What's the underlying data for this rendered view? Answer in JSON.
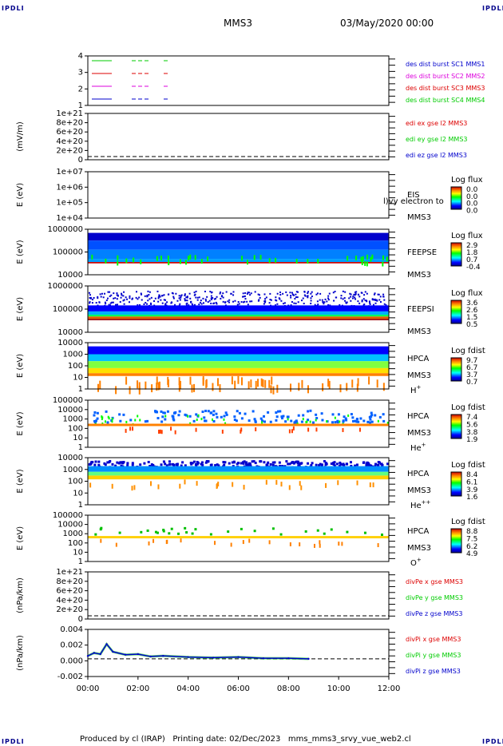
{
  "corner_label": "IPDLI",
  "header": {
    "spacecraft": "MMS3",
    "datetime": "03/May/2020 00:00"
  },
  "footer": {
    "produced_by": "Produced by cl (IRAP)",
    "printing_date": "Printing date: 02/Dec/2023",
    "script": "mms_mms3_srvy_vue_web2.cl"
  },
  "colors": {
    "mms1": "#0000cc",
    "mms2": "#dd00dd",
    "mms3": "#dd0000",
    "mms4": "#00cc00"
  },
  "chart_data": [
    {
      "id": "des-dist-burst",
      "type": "line",
      "yticks": [
        "1",
        "2",
        "3",
        "4"
      ],
      "legend": [
        {
          "label": "des dist burst SC1 MMS1",
          "color": "#0000cc"
        },
        {
          "label": "des dist burst SC2 MMS2",
          "color": "#dd00dd"
        },
        {
          "label": "des dist burst SC3 MMS3",
          "color": "#dd0000"
        },
        {
          "label": "des dist burst SC4 MMS4",
          "color": "#00cc00"
        }
      ]
    },
    {
      "id": "edi-e",
      "type": "line",
      "ylabel": "(mV/m)",
      "yticks": [
        "0",
        "2e+20",
        "4e+20",
        "6e+20",
        "8e+20",
        "1e+21"
      ],
      "legend": [
        {
          "label": "edi ex gse l2 MMS3",
          "color": "#dd0000"
        },
        {
          "label": "edi ey gse l2 MMS3",
          "color": "#00cc00"
        },
        {
          "label": "edi ez gse l2 MMS3",
          "color": "#0000cc"
        }
      ]
    },
    {
      "id": "eis",
      "type": "heatmap",
      "ylabel": "E (eV)",
      "yticks": [
        "1e+04",
        "1e+05",
        "1e+06",
        "1e+07"
      ],
      "instrument": "EIS",
      "spacecraft": "MMS3",
      "overlay_text": "l)vy electron to",
      "colorbar_title": "Log flux",
      "colorbar_ticks": [
        "0.0",
        "0.0",
        "0.0",
        "0.0"
      ]
    },
    {
      "id": "feepse",
      "type": "heatmap",
      "ylabel": "E (eV)",
      "yticks": [
        "10000",
        "100000",
        "1000000"
      ],
      "instrument": "FEEPSE",
      "spacecraft": "MMS3",
      "colorbar_title": "Log flux",
      "colorbar_ticks": [
        "2.9",
        "1.8",
        "0.7",
        "-0.4"
      ]
    },
    {
      "id": "feepsi",
      "type": "heatmap",
      "ylabel": "E (eV)",
      "yticks": [
        "10000",
        "100000",
        "1000000"
      ],
      "instrument": "FEEPSI",
      "spacecraft": "MMS3",
      "colorbar_title": "Log flux",
      "colorbar_ticks": [
        "3.6",
        "2.6",
        "1.5",
        "0.5"
      ]
    },
    {
      "id": "hpca-h",
      "type": "heatmap",
      "ylabel": "E (eV)",
      "yticks": [
        "1",
        "10",
        "100",
        "1000",
        "10000"
      ],
      "instrument": "HPCA",
      "spacecraft": "MMS3",
      "species": "H",
      "charge": "+",
      "colorbar_title": "Log fdist",
      "colorbar_ticks": [
        "9.7",
        "6.7",
        "3.7",
        "0.7"
      ]
    },
    {
      "id": "hpca-he",
      "type": "heatmap",
      "ylabel": "E (eV)",
      "yticks": [
        "1",
        "10",
        "100",
        "1000",
        "10000",
        "100000"
      ],
      "instrument": "HPCA",
      "spacecraft": "MMS3",
      "species": "He",
      "charge": "+",
      "colorbar_title": "Log fdist",
      "colorbar_ticks": [
        "7.4",
        "5.6",
        "3.8",
        "1.9"
      ]
    },
    {
      "id": "hpca-hepp",
      "type": "heatmap",
      "ylabel": "E (eV)",
      "yticks": [
        "1",
        "10",
        "100",
        "1000",
        "10000"
      ],
      "instrument": "HPCA",
      "spacecraft": "MMS3",
      "species": "He",
      "charge": "++",
      "colorbar_title": "Log fdist",
      "colorbar_ticks": [
        "8.4",
        "6.1",
        "3.9",
        "1.6"
      ]
    },
    {
      "id": "hpca-o",
      "type": "heatmap",
      "ylabel": "E (eV)",
      "yticks": [
        "1",
        "10",
        "100",
        "1000",
        "10000",
        "100000"
      ],
      "instrument": "HPCA",
      "spacecraft": "MMS3",
      "species": "O",
      "charge": "+",
      "colorbar_title": "Log fdist",
      "colorbar_ticks": [
        "8.8",
        "7.5",
        "6.2",
        "4.9"
      ]
    },
    {
      "id": "divpe",
      "type": "line",
      "ylabel": "(nPa/km)",
      "yticks": [
        "0",
        "2e+20",
        "4e+20",
        "6e+20",
        "8e+20",
        "1e+21"
      ],
      "legend": [
        {
          "label": "divPe x gse MMS3",
          "color": "#dd0000"
        },
        {
          "label": "divPe y gse MMS3",
          "color": "#00cc00"
        },
        {
          "label": "divPe z gse MMS3",
          "color": "#0000cc"
        }
      ]
    },
    {
      "id": "divpi",
      "type": "line",
      "ylabel": "(nPa/km)",
      "yticks": [
        "-0.002",
        "0.000",
        "0.002",
        "0.004"
      ],
      "ylim": [
        -0.003,
        0.005
      ],
      "legend": [
        {
          "label": "divPi x gse MMS3",
          "color": "#dd0000"
        },
        {
          "label": "divPi y gse MMS3",
          "color": "#00cc00"
        },
        {
          "label": "divPi z gse MMS3",
          "color": "#0000cc"
        }
      ],
      "x": [
        0,
        0.25,
        0.5,
        0.75,
        1,
        1.5,
        2,
        2.5,
        3,
        4,
        5,
        6,
        7,
        8,
        8.8
      ],
      "series": [
        {
          "name": "divPi z gse MMS3",
          "values": [
            0.0005,
            0.001,
            0.0008,
            0.0025,
            0.0012,
            0.0007,
            0.0008,
            0.0004,
            0.0005,
            0.0003,
            0.0002,
            0.0003,
            0.0001,
            0.0001,
            0.0
          ]
        }
      ]
    }
  ],
  "xaxis": {
    "ticks": [
      "00:00",
      "02:00",
      "04:00",
      "06:00",
      "08:00",
      "10:00",
      "12:00"
    ],
    "range_hours": [
      0,
      12
    ]
  }
}
